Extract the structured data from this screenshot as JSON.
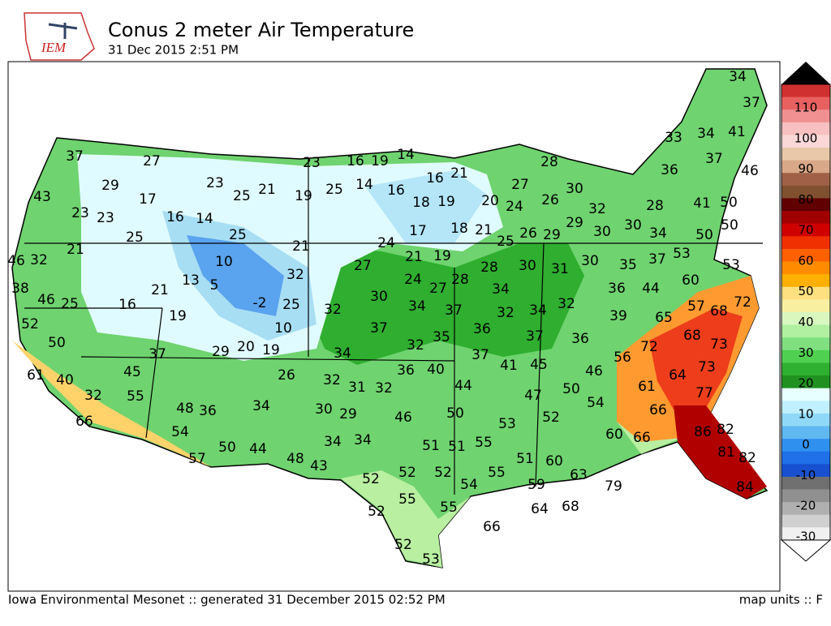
{
  "header": {
    "logo": "IEM",
    "title": "Conus 2 meter Air Temperature",
    "subtitle": "31 Dec 2015 2:51 PM"
  },
  "stations": [
    34,
    37,
    33,
    34,
    41,
    37,
    27,
    23,
    16,
    19,
    14,
    28,
    37,
    46,
    36,
    16,
    21,
    27,
    29,
    23,
    25,
    21,
    19,
    25,
    14,
    16,
    30,
    43,
    17,
    18,
    19,
    20,
    24,
    26,
    32,
    28,
    41,
    50,
    23,
    23,
    16,
    14,
    29,
    30,
    50,
    17,
    18,
    21,
    26,
    29,
    30,
    34,
    50,
    25,
    25,
    21,
    24,
    25,
    21,
    46,
    32,
    10,
    21,
    19,
    53,
    37,
    27,
    28,
    30,
    31,
    30,
    35,
    53,
    13,
    5,
    32,
    24,
    28,
    60,
    38,
    21,
    27,
    34,
    36,
    44,
    46,
    25,
    16,
    -2,
    25,
    32,
    30,
    34,
    37,
    32,
    34,
    32,
    57,
    68,
    72,
    19,
    65,
    39,
    52,
    10,
    37,
    35,
    36,
    37,
    36,
    68,
    50,
    29,
    20,
    19,
    37,
    34,
    32,
    37,
    72,
    73,
    56,
    41,
    45,
    61,
    40,
    45,
    26,
    32,
    31,
    32,
    36,
    40,
    46,
    64,
    73,
    44,
    50,
    61,
    32,
    55,
    47,
    77,
    48,
    36,
    34,
    30,
    29,
    54,
    66,
    46,
    50,
    66,
    52,
    53,
    54,
    86,
    82,
    60,
    66,
    34,
    34,
    51,
    51,
    55,
    50,
    44,
    48,
    57,
    43,
    81,
    82,
    51,
    60,
    63,
    52,
    52,
    52,
    55,
    79,
    59,
    54,
    84,
    55,
    55,
    64,
    68,
    52,
    66,
    52,
    53
  ],
  "colorbar": {
    "ticks": [
      110,
      100,
      90,
      80,
      70,
      60,
      50,
      40,
      30,
      20,
      10,
      0,
      -10,
      -20,
      -30
    ]
  },
  "footer": {
    "source": "Iowa Environmental Mesonet :: generated 31 December 2015 02:52 PM",
    "units": "map units :: F"
  }
}
